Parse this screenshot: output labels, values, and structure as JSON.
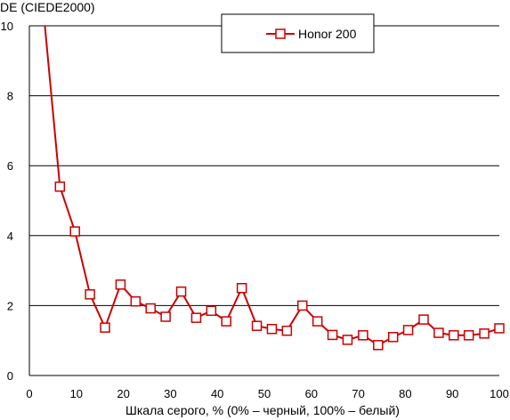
{
  "chart_data": {
    "type": "line",
    "ylabel": "DE (CIEDE2000)",
    "xlabel": "Шкала серого, % (0% – черный, 100% – белый)",
    "xlim": [
      0,
      100
    ],
    "ylim": [
      0,
      10
    ],
    "xticks": [
      0,
      10,
      20,
      30,
      40,
      50,
      60,
      70,
      80,
      90,
      100
    ],
    "yticks": [
      0,
      2,
      4,
      6,
      8,
      10
    ],
    "grid": "horizontal",
    "legend_position": "top-center",
    "series": [
      {
        "name": "Honor 200",
        "color": "#cc0000",
        "marker": "square",
        "x": [
          6.5,
          9.7,
          12.9,
          16.1,
          19.4,
          22.6,
          25.8,
          29.0,
          32.3,
          35.5,
          38.7,
          41.9,
          45.2,
          48.4,
          51.6,
          54.8,
          58.1,
          61.3,
          64.5,
          67.7,
          71.0,
          74.2,
          77.4,
          80.6,
          83.9,
          87.1,
          90.3,
          93.5,
          96.8,
          100
        ],
        "y": [
          5.4,
          4.12,
          2.32,
          1.37,
          2.6,
          2.12,
          1.92,
          1.68,
          2.4,
          1.65,
          1.85,
          1.55,
          2.5,
          1.42,
          1.33,
          1.28,
          2.0,
          1.55,
          1.16,
          1.02,
          1.15,
          0.87,
          1.1,
          1.3,
          1.6,
          1.22,
          1.15,
          1.15,
          1.2,
          1.35
        ],
        "line_start": {
          "x": 3.3,
          "y": 10
        }
      }
    ]
  }
}
